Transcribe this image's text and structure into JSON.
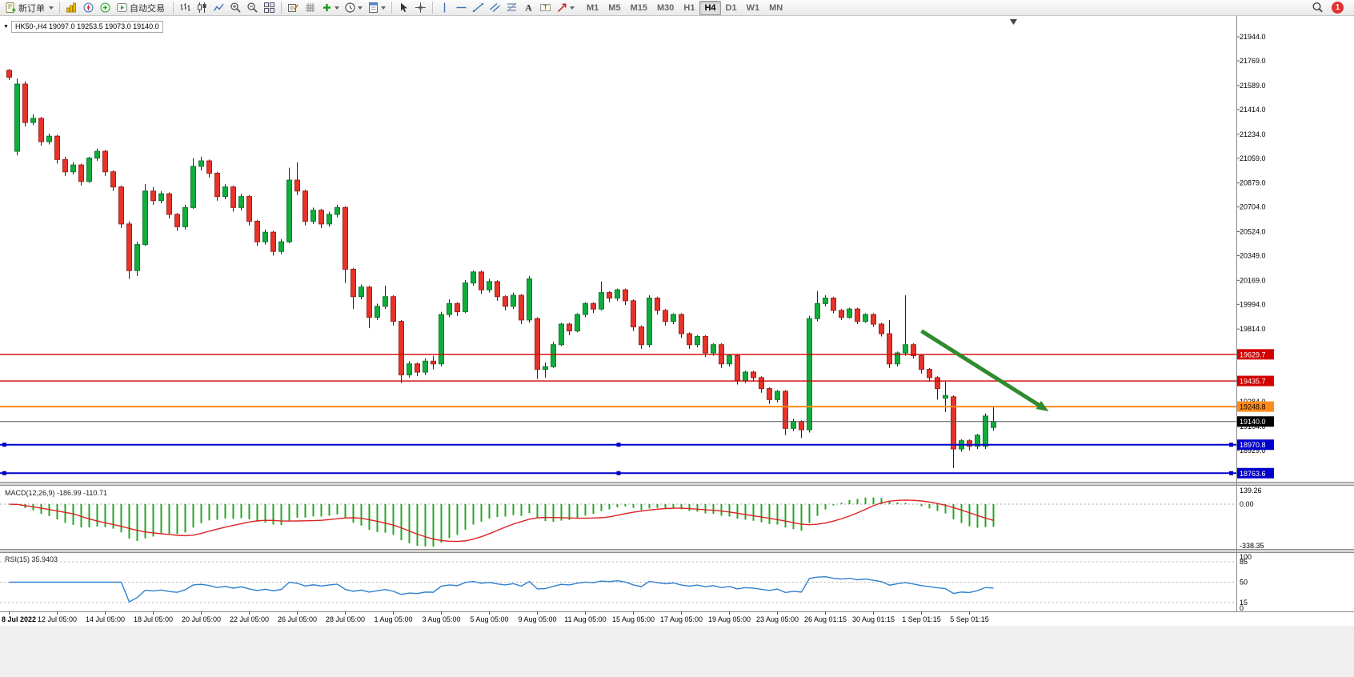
{
  "toolbar": {
    "groups": [
      {
        "items": [
          {
            "name": "new-order",
            "label": "新订单",
            "caret": true
          }
        ]
      },
      {
        "items": [
          {
            "name": "market-watch"
          },
          {
            "name": "navigator"
          },
          {
            "name": "terminal"
          },
          {
            "name": "autotrading",
            "label": "自动交易"
          }
        ]
      },
      {
        "items": [
          {
            "name": "bar-chart"
          },
          {
            "name": "candlestick-chart"
          },
          {
            "name": "line-chart"
          },
          {
            "name": "zoom-in"
          },
          {
            "name": "zoom-out"
          },
          {
            "name": "tile-windows"
          }
        ]
      },
      {
        "items": [
          {
            "name": "objects-list"
          },
          {
            "name": "grid"
          },
          {
            "name": "indicators",
            "caret": true
          },
          {
            "name": "periods",
            "caret": true
          },
          {
            "name": "template",
            "caret": true
          }
        ]
      },
      {
        "items": [
          {
            "name": "cursor"
          },
          {
            "name": "crosshair"
          }
        ]
      },
      {
        "items": [
          {
            "name": "vertical-line"
          },
          {
            "name": "horizontal-line"
          },
          {
            "name": "trendline"
          },
          {
            "name": "equidistant-channel"
          },
          {
            "name": "fibonacci"
          },
          {
            "name": "text"
          },
          {
            "name": "text-label"
          },
          {
            "name": "arrows",
            "caret": true
          }
        ]
      }
    ],
    "timeframes": [
      "M1",
      "M5",
      "M15",
      "M30",
      "H1",
      "H4",
      "D1",
      "W1",
      "MN"
    ],
    "active_timeframe": "H4",
    "notification_count": "1"
  },
  "icons": {
    "one_click_glyph": "▼"
  },
  "chart": {
    "title": "HK50-,H4",
    "ohlc_text": "19097.0 19253.5 19073.0 19140.0"
  },
  "colors": {
    "bull": "#0fae3c",
    "bull_border": "#0a7d2c",
    "bear": "#e8332a",
    "bear_border": "#a81f18",
    "wick": "#222222",
    "grid_dotted": "#b5b5b5",
    "panel_separator": "#d8d4cf",
    "axis_line": "#8a8a8a"
  },
  "chart_data": {
    "type": "candlestick",
    "symbol": "HK50-",
    "period": "H4",
    "current_ohlc": {
      "open": 19097.0,
      "high": 19253.5,
      "low": 19073.0,
      "close": 19140.0
    },
    "y_axis": {
      "max": 22096,
      "min": 18701,
      "ticks": [
        21944,
        21769,
        21589,
        21414,
        21234,
        21059,
        20879,
        20704,
        20524,
        20349,
        20169,
        19994,
        19814,
        19284,
        19104,
        18929
      ]
    },
    "x_labels": [
      "8 Jul 2022",
      "12 Jul 05:00",
      "14 Jul 05:00",
      "18 Jul 05:00",
      "20 Jul 05:00",
      "22 Jul 05:00",
      "26 Jul 05:00",
      "28 Jul 05:00",
      "1 Aug 05:00",
      "3 Aug 05:00",
      "5 Aug 05:00",
      "9 Aug 05:00",
      "11 Aug 05:00",
      "15 Aug 05:00",
      "17 Aug 05:00",
      "19 Aug 05:00",
      "23 Aug 05:00",
      "26 Aug 01:15",
      "30 Aug 01:15",
      "1 Sep 01:15",
      "5 Sep 01:15"
    ],
    "label_every": 6,
    "candles_ohlc": [
      [
        21700,
        21710,
        21630,
        21650
      ],
      [
        21110,
        21640,
        21080,
        21600
      ],
      [
        21600,
        21620,
        21290,
        21320
      ],
      [
        21320,
        21380,
        21300,
        21350
      ],
      [
        21350,
        21360,
        21150,
        21180
      ],
      [
        21180,
        21240,
        21160,
        21220
      ],
      [
        21220,
        21230,
        21020,
        21050
      ],
      [
        21050,
        21070,
        20930,
        20960
      ],
      [
        20960,
        21030,
        20940,
        21010
      ],
      [
        21010,
        21020,
        20860,
        20890
      ],
      [
        20890,
        21070,
        20880,
        21060
      ],
      [
        21060,
        21130,
        21040,
        21110
      ],
      [
        21110,
        21120,
        20930,
        20960
      ],
      [
        20960,
        20970,
        20820,
        20850
      ],
      [
        20850,
        20860,
        20550,
        20580
      ],
      [
        20580,
        20600,
        20180,
        20240
      ],
      [
        20240,
        20450,
        20200,
        20430
      ],
      [
        20430,
        20870,
        20420,
        20820
      ],
      [
        20820,
        20850,
        20720,
        20750
      ],
      [
        20750,
        20820,
        20730,
        20800
      ],
      [
        20800,
        20810,
        20620,
        20650
      ],
      [
        20650,
        20660,
        20530,
        20560
      ],
      [
        20560,
        20720,
        20540,
        20700
      ],
      [
        20700,
        21060,
        20690,
        21000
      ],
      [
        21000,
        21070,
        20970,
        21040
      ],
      [
        21040,
        21050,
        20920,
        20950
      ],
      [
        20950,
        20960,
        20750,
        20780
      ],
      [
        20780,
        20870,
        20760,
        20850
      ],
      [
        20850,
        20860,
        20670,
        20700
      ],
      [
        20700,
        20800,
        20680,
        20780
      ],
      [
        20780,
        20790,
        20570,
        20600
      ],
      [
        20600,
        20610,
        20420,
        20450
      ],
      [
        20450,
        20540,
        20430,
        20520
      ],
      [
        20520,
        20530,
        20350,
        20380
      ],
      [
        20380,
        20470,
        20360,
        20450
      ],
      [
        20450,
        20990,
        20440,
        20900
      ],
      [
        20900,
        21030,
        20790,
        20820
      ],
      [
        20820,
        20830,
        20570,
        20600
      ],
      [
        20600,
        20700,
        20580,
        20680
      ],
      [
        20680,
        20690,
        20550,
        20580
      ],
      [
        20580,
        20670,
        20560,
        20650
      ],
      [
        20650,
        20720,
        20630,
        20700
      ],
      [
        20700,
        20710,
        20150,
        20250
      ],
      [
        20250,
        20260,
        19960,
        20050
      ],
      [
        20050,
        20140,
        20030,
        20120
      ],
      [
        20120,
        20130,
        19820,
        19900
      ],
      [
        19900,
        20000,
        19880,
        19980
      ],
      [
        19980,
        20130,
        19960,
        20050
      ],
      [
        20050,
        20060,
        19840,
        19870
      ],
      [
        19870,
        19880,
        19420,
        19480
      ],
      [
        19480,
        19580,
        19460,
        19560
      ],
      [
        19560,
        19570,
        19470,
        19500
      ],
      [
        19500,
        19600,
        19480,
        19580
      ],
      [
        19580,
        19620,
        19520,
        19560
      ],
      [
        19560,
        19940,
        19540,
        19920
      ],
      [
        19920,
        20030,
        19900,
        20000
      ],
      [
        20000,
        20010,
        19910,
        19940
      ],
      [
        19940,
        20170,
        19930,
        20150
      ],
      [
        20150,
        20240,
        20130,
        20230
      ],
      [
        20230,
        20240,
        20070,
        20100
      ],
      [
        20100,
        20180,
        20080,
        20160
      ],
      [
        20160,
        20170,
        20020,
        20050
      ],
      [
        20050,
        20060,
        19950,
        19980
      ],
      [
        19980,
        20080,
        19960,
        20060
      ],
      [
        20060,
        20070,
        19850,
        19880
      ],
      [
        19880,
        20200,
        19860,
        20180
      ],
      [
        19890,
        19900,
        19450,
        19520
      ],
      [
        19520,
        19570,
        19460,
        19540
      ],
      [
        19540,
        19720,
        19530,
        19700
      ],
      [
        19700,
        19860,
        19690,
        19850
      ],
      [
        19850,
        19860,
        19770,
        19800
      ],
      [
        19800,
        19930,
        19790,
        19920
      ],
      [
        19920,
        20010,
        19900,
        20000
      ],
      [
        20000,
        20010,
        19930,
        19960
      ],
      [
        19960,
        20160,
        19950,
        20080
      ],
      [
        20080,
        20090,
        20010,
        20040
      ],
      [
        20040,
        20110,
        20020,
        20100
      ],
      [
        20100,
        20110,
        19990,
        20020
      ],
      [
        20020,
        20030,
        19800,
        19830
      ],
      [
        19830,
        19840,
        19670,
        19700
      ],
      [
        19700,
        20060,
        19680,
        20040
      ],
      [
        20040,
        20050,
        19920,
        19950
      ],
      [
        19950,
        19960,
        19840,
        19870
      ],
      [
        19870,
        19930,
        19850,
        19920
      ],
      [
        19920,
        19930,
        19750,
        19780
      ],
      [
        19780,
        19790,
        19670,
        19700
      ],
      [
        19700,
        19770,
        19680,
        19760
      ],
      [
        19760,
        19770,
        19610,
        19640
      ],
      [
        19640,
        19710,
        19620,
        19700
      ],
      [
        19700,
        19710,
        19530,
        19560
      ],
      [
        19560,
        19630,
        19540,
        19620
      ],
      [
        19620,
        19630,
        19410,
        19440
      ],
      [
        19440,
        19510,
        19420,
        19500
      ],
      [
        19500,
        19510,
        19430,
        19460
      ],
      [
        19460,
        19470,
        19350,
        19380
      ],
      [
        19380,
        19390,
        19270,
        19300
      ],
      [
        19300,
        19370,
        19280,
        19360
      ],
      [
        19360,
        19370,
        19040,
        19090
      ],
      [
        19090,
        19160,
        19070,
        19140
      ],
      [
        19140,
        19150,
        19020,
        19080
      ],
      [
        19080,
        19910,
        19060,
        19890
      ],
      [
        19890,
        20090,
        19870,
        20000
      ],
      [
        20000,
        20060,
        19980,
        20040
      ],
      [
        20040,
        20050,
        19930,
        19950
      ],
      [
        19950,
        19960,
        19880,
        19900
      ],
      [
        19900,
        19970,
        19890,
        19960
      ],
      [
        19960,
        19970,
        19850,
        19870
      ],
      [
        19870,
        19930,
        19860,
        19920
      ],
      [
        19920,
        19930,
        19830,
        19850
      ],
      [
        19850,
        19860,
        19760,
        19780
      ],
      [
        19780,
        19880,
        19530,
        19560
      ],
      [
        19560,
        19650,
        19540,
        19640
      ],
      [
        19640,
        20060,
        19620,
        19700
      ],
      [
        19700,
        19710,
        19600,
        19620
      ],
      [
        19620,
        19630,
        19490,
        19520
      ],
      [
        19520,
        19530,
        19430,
        19460
      ],
      [
        19460,
        19470,
        19300,
        19380
      ],
      [
        19310,
        19430,
        19210,
        19330
      ],
      [
        19320,
        19330,
        18800,
        18940
      ],
      [
        18940,
        19010,
        18920,
        19000
      ],
      [
        19000,
        19010,
        18930,
        18960
      ],
      [
        18960,
        19050,
        18940,
        19040
      ],
      [
        18960,
        19200,
        18940,
        19180
      ],
      [
        19097,
        19253.5,
        19073,
        19140
      ]
    ],
    "hlines": [
      {
        "name": "resistance-line-1",
        "price": 19629.7,
        "label": "19629.7",
        "color": "#d40000",
        "width": 1.3,
        "badge_bg": "#d40000",
        "badge_fg": "#ffffff"
      },
      {
        "name": "resistance-line-2",
        "price": 19435.7,
        "label": "19435.7",
        "color": "#d40000",
        "width": 1.3,
        "badge_bg": "#d40000",
        "badge_fg": "#ffffff"
      },
      {
        "name": "support-line-orange",
        "price": 19248.8,
        "label": "19248.8",
        "color": "#ff8c1a",
        "width": 2,
        "badge_bg": "#ff8c1a",
        "badge_fg": "#000000"
      },
      {
        "name": "current-price-line",
        "price": 19140.0,
        "label": "19140.0",
        "color": "#555555",
        "width": 1,
        "badge_bg": "#000000",
        "badge_fg": "#ffffff"
      },
      {
        "name": "support-line-blue-1",
        "price": 18970.8,
        "label": "18970.8",
        "color": "#0000cc",
        "width": 2,
        "badge_bg": "#0000cc",
        "badge_fg": "#ffffff",
        "handles": true
      },
      {
        "name": "support-line-blue-2",
        "price": 18763.6,
        "label": "18763.6",
        "color": "#0000cc",
        "width": 2,
        "badge_bg": "#0000cc",
        "badge_fg": "#ffffff",
        "handles": true
      }
    ],
    "trend_arrow": {
      "bar1": 114,
      "price1": 19800,
      "bar2": 128.8,
      "price2": 19255,
      "color": "#2e8b2e"
    },
    "indicators": {
      "macd": {
        "name": "MACD(12,26,9)",
        "fast": 12,
        "slow": 26,
        "signal": 9,
        "value_main": "-186.99",
        "value_signal": "-110.71",
        "scale_max": 139.26,
        "scale_zero": "0.00",
        "scale_min": -338.35,
        "color_main": "#22a822",
        "color_signal": "#dd2222"
      },
      "rsi": {
        "name": "RSI(15)",
        "period": 15,
        "value": "35.9403",
        "levels": [
          85,
          50,
          15
        ],
        "scale_labels": [
          100,
          85,
          50,
          15,
          0
        ],
        "color": "#3080d0"
      }
    }
  }
}
